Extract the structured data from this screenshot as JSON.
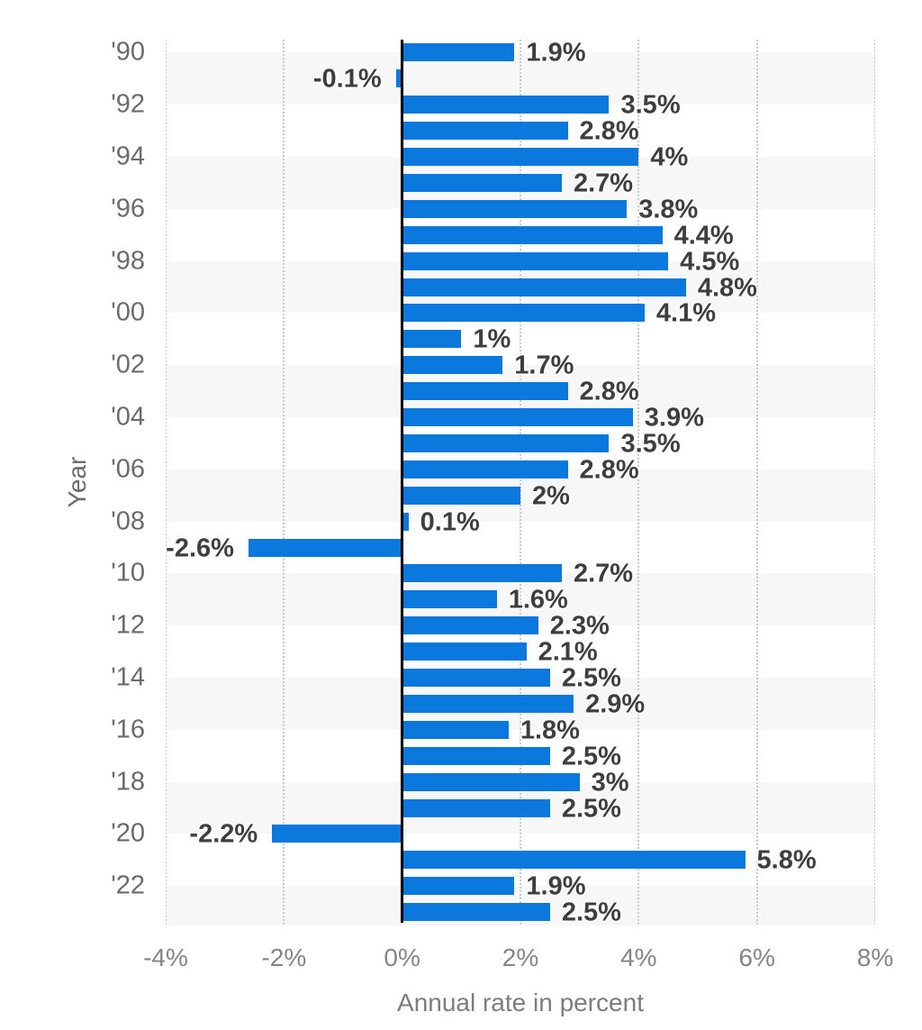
{
  "chart_data": {
    "type": "bar",
    "orientation": "horizontal",
    "title": "",
    "xlabel": "Annual rate in percent",
    "ylabel": "Year",
    "xlim": [
      -4,
      8
    ],
    "grid": "vertical dotted gridlines at every 2% tick, solid black line at 0",
    "legend": "none",
    "x_tick_labels": [
      "-4%",
      "-2%",
      "0%",
      "2%",
      "4%",
      "6%",
      "8%"
    ],
    "x_tick_values": [
      -4,
      -2,
      0,
      2,
      4,
      6,
      8
    ],
    "y_tick_labels": [
      "'90",
      "'92",
      "'94",
      "'96",
      "'98",
      "'00",
      "'02",
      "'04",
      "'06",
      "'08",
      "'10",
      "'12",
      "'14",
      "'16",
      "'18",
      "'20",
      "'22"
    ],
    "years": [
      1990,
      1991,
      1992,
      1993,
      1994,
      1995,
      1996,
      1997,
      1998,
      1999,
      2000,
      2001,
      2002,
      2003,
      2004,
      2005,
      2006,
      2007,
      2008,
      2009,
      2010,
      2011,
      2012,
      2013,
      2014,
      2015,
      2016,
      2017,
      2018,
      2019,
      2020,
      2021,
      2022,
      2023
    ],
    "values": [
      1.9,
      -0.1,
      3.5,
      2.8,
      4,
      2.7,
      3.8,
      4.4,
      4.5,
      4.8,
      4.1,
      1,
      1.7,
      2.8,
      3.9,
      3.5,
      2.8,
      2,
      0.1,
      -2.6,
      2.7,
      1.6,
      2.3,
      2.1,
      2.5,
      2.9,
      1.8,
      2.5,
      3,
      2.5,
      -2.2,
      5.8,
      1.9,
      2.5
    ],
    "value_labels": [
      "1.9%",
      "-0.1%",
      "3.5%",
      "2.8%",
      "4%",
      "2.7%",
      "3.8%",
      "4.4%",
      "4.5%",
      "4.8%",
      "4.1%",
      "1%",
      "1.7%",
      "2.8%",
      "3.9%",
      "3.5%",
      "2.8%",
      "2%",
      "0.1%",
      "-2.6%",
      "2.7%",
      "1.6%",
      "2.3%",
      "2.1%",
      "2.5%",
      "2.9%",
      "1.8%",
      "2.5%",
      "3%",
      "2.5%",
      "-2.2%",
      "5.8%",
      "1.9%",
      "2.5%"
    ],
    "colors": {
      "bar": "#0a78dc",
      "row_stripe": "#f7f7f7",
      "gridline": "#c9c9c9",
      "zero_line": "#000000",
      "value_label": "#3e3e3e",
      "year_label": "#6b6b6b",
      "tick_label": "#858585",
      "axis_title": "#7d7d7d"
    }
  }
}
